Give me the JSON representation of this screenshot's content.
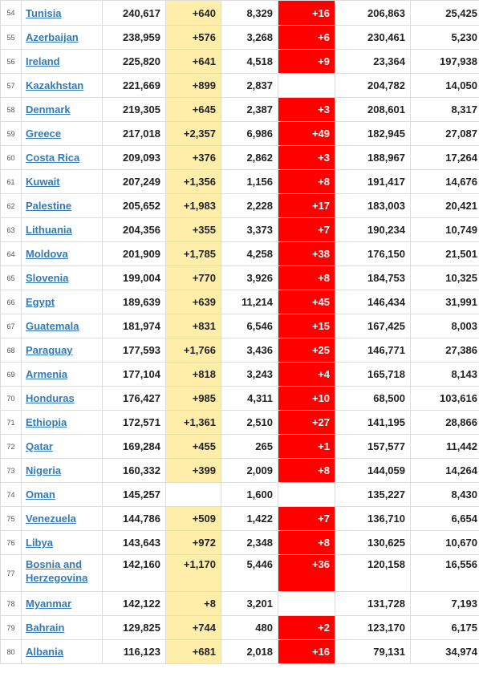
{
  "table": {
    "rows": [
      {
        "num": "54",
        "country": "Tunisia",
        "total_cases": "240,617",
        "new_cases": "+640",
        "total_deaths": "8,329",
        "new_deaths": "+16",
        "total_recovered": "206,863",
        "active_cases": "25,425"
      },
      {
        "num": "55",
        "country": "Azerbaijan",
        "total_cases": "238,959",
        "new_cases": "+576",
        "total_deaths": "3,268",
        "new_deaths": "+6",
        "total_recovered": "230,461",
        "active_cases": "5,230"
      },
      {
        "num": "56",
        "country": "Ireland",
        "total_cases": "225,820",
        "new_cases": "+641",
        "total_deaths": "4,518",
        "new_deaths": "+9",
        "total_recovered": "23,364",
        "active_cases": "197,938"
      },
      {
        "num": "57",
        "country": "Kazakhstan",
        "total_cases": "221,669",
        "new_cases": "+899",
        "total_deaths": "2,837",
        "new_deaths": "",
        "total_recovered": "204,782",
        "active_cases": "14,050"
      },
      {
        "num": "58",
        "country": "Denmark",
        "total_cases": "219,305",
        "new_cases": "+645",
        "total_deaths": "2,387",
        "new_deaths": "+3",
        "total_recovered": "208,601",
        "active_cases": "8,317"
      },
      {
        "num": "59",
        "country": "Greece",
        "total_cases": "217,018",
        "new_cases": "+2,357",
        "total_deaths": "6,986",
        "new_deaths": "+49",
        "total_recovered": "182,945",
        "active_cases": "27,087"
      },
      {
        "num": "60",
        "country": "Costa Rica",
        "total_cases": "209,093",
        "new_cases": "+376",
        "total_deaths": "2,862",
        "new_deaths": "+3",
        "total_recovered": "188,967",
        "active_cases": "17,264"
      },
      {
        "num": "61",
        "country": "Kuwait",
        "total_cases": "207,249",
        "new_cases": "+1,356",
        "total_deaths": "1,156",
        "new_deaths": "+8",
        "total_recovered": "191,417",
        "active_cases": "14,676"
      },
      {
        "num": "62",
        "country": "Palestine",
        "total_cases": "205,652",
        "new_cases": "+1,983",
        "total_deaths": "2,228",
        "new_deaths": "+17",
        "total_recovered": "183,003",
        "active_cases": "20,421"
      },
      {
        "num": "63",
        "country": "Lithuania",
        "total_cases": "204,356",
        "new_cases": "+355",
        "total_deaths": "3,373",
        "new_deaths": "+7",
        "total_recovered": "190,234",
        "active_cases": "10,749"
      },
      {
        "num": "64",
        "country": "Moldova",
        "total_cases": "201,909",
        "new_cases": "+1,785",
        "total_deaths": "4,258",
        "new_deaths": "+38",
        "total_recovered": "176,150",
        "active_cases": "21,501"
      },
      {
        "num": "65",
        "country": "Slovenia",
        "total_cases": "199,004",
        "new_cases": "+770",
        "total_deaths": "3,926",
        "new_deaths": "+8",
        "total_recovered": "184,753",
        "active_cases": "10,325"
      },
      {
        "num": "66",
        "country": "Egypt",
        "total_cases": "189,639",
        "new_cases": "+639",
        "total_deaths": "11,214",
        "new_deaths": "+45",
        "total_recovered": "146,434",
        "active_cases": "31,991"
      },
      {
        "num": "67",
        "country": "Guatemala",
        "total_cases": "181,974",
        "new_cases": "+831",
        "total_deaths": "6,546",
        "new_deaths": "+15",
        "total_recovered": "167,425",
        "active_cases": "8,003"
      },
      {
        "num": "68",
        "country": "Paraguay",
        "total_cases": "177,593",
        "new_cases": "+1,766",
        "total_deaths": "3,436",
        "new_deaths": "+25",
        "total_recovered": "146,771",
        "active_cases": "27,386"
      },
      {
        "num": "69",
        "country": "Armenia",
        "total_cases": "177,104",
        "new_cases": "+818",
        "total_deaths": "3,243",
        "new_deaths": "+4",
        "total_recovered": "165,718",
        "active_cases": "8,143"
      },
      {
        "num": "70",
        "country": "Honduras",
        "total_cases": "176,427",
        "new_cases": "+985",
        "total_deaths": "4,311",
        "new_deaths": "+10",
        "total_recovered": "68,500",
        "active_cases": "103,616"
      },
      {
        "num": "71",
        "country": "Ethiopia",
        "total_cases": "172,571",
        "new_cases": "+1,361",
        "total_deaths": "2,510",
        "new_deaths": "+27",
        "total_recovered": "141,195",
        "active_cases": "28,866"
      },
      {
        "num": "72",
        "country": "Qatar",
        "total_cases": "169,284",
        "new_cases": "+455",
        "total_deaths": "265",
        "new_deaths": "+1",
        "total_recovered": "157,577",
        "active_cases": "11,442"
      },
      {
        "num": "73",
        "country": "Nigeria",
        "total_cases": "160,332",
        "new_cases": "+399",
        "total_deaths": "2,009",
        "new_deaths": "+8",
        "total_recovered": "144,059",
        "active_cases": "14,264"
      },
      {
        "num": "74",
        "country": "Oman",
        "total_cases": "145,257",
        "new_cases": "",
        "total_deaths": "1,600",
        "new_deaths": "",
        "total_recovered": "135,227",
        "active_cases": "8,430"
      },
      {
        "num": "75",
        "country": "Venezuela",
        "total_cases": "144,786",
        "new_cases": "+509",
        "total_deaths": "1,422",
        "new_deaths": "+7",
        "total_recovered": "136,710",
        "active_cases": "6,654"
      },
      {
        "num": "76",
        "country": "Libya",
        "total_cases": "143,643",
        "new_cases": "+972",
        "total_deaths": "2,348",
        "new_deaths": "+8",
        "total_recovered": "130,625",
        "active_cases": "10,670"
      },
      {
        "num": "77",
        "country": "Bosnia and Herzegovina",
        "total_cases": "142,160",
        "new_cases": "+1,170",
        "total_deaths": "5,446",
        "new_deaths": "+36",
        "total_recovered": "120,158",
        "active_cases": "16,556"
      },
      {
        "num": "78",
        "country": "Myanmar",
        "total_cases": "142,122",
        "new_cases": "+8",
        "total_deaths": "3,201",
        "new_deaths": "",
        "total_recovered": "131,728",
        "active_cases": "7,193"
      },
      {
        "num": "79",
        "country": "Bahrain",
        "total_cases": "129,825",
        "new_cases": "+744",
        "total_deaths": "480",
        "new_deaths": "+2",
        "total_recovered": "123,170",
        "active_cases": "6,175"
      },
      {
        "num": "80",
        "country": "Albania",
        "total_cases": "116,123",
        "new_cases": "+681",
        "total_deaths": "2,018",
        "new_deaths": "+16",
        "total_recovered": "79,131",
        "active_cases": "34,974"
      }
    ]
  },
  "colors": {
    "new_cases_bg": "#ffeeaa",
    "new_deaths_bg": "#ff0000",
    "link": "#337ab7",
    "border": "#dddddd"
  }
}
